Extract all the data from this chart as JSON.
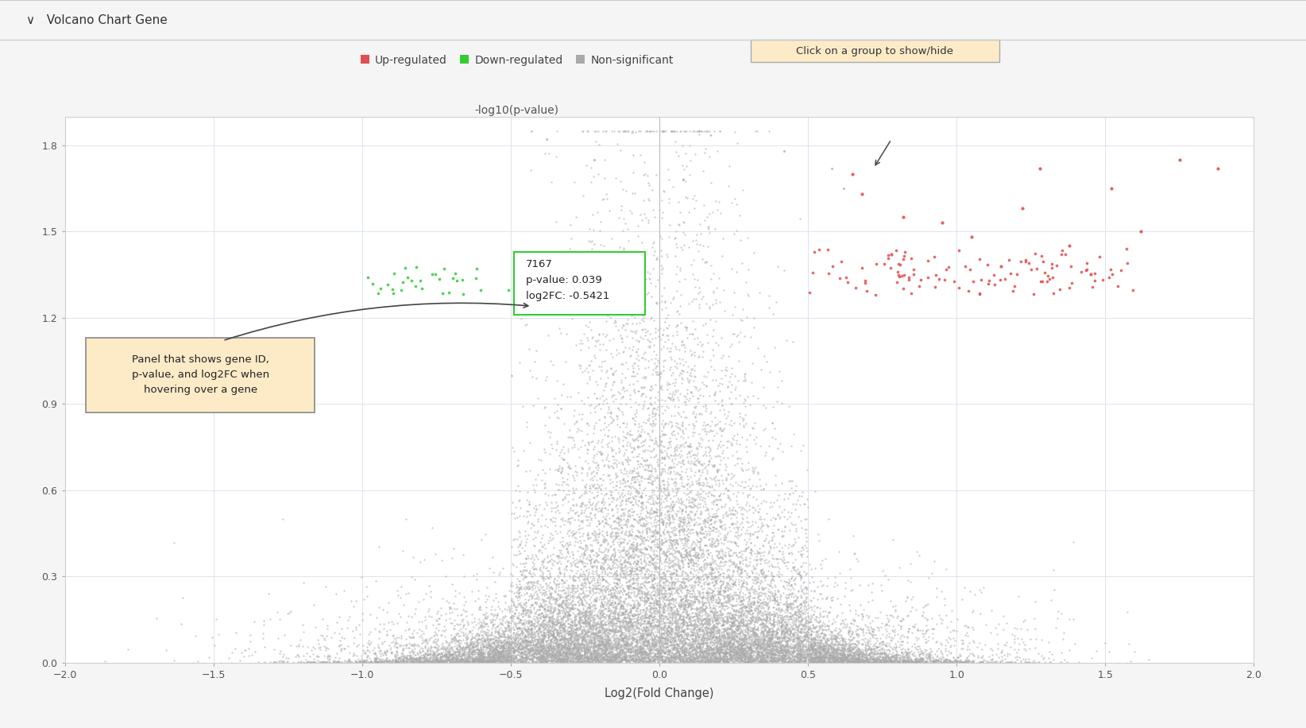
{
  "title": "Volcano Chart Gene",
  "xlabel": "Log2(Fold Change)",
  "ylabel": "-log10(p-value)",
  "xlim": [
    -2,
    2
  ],
  "ylim": [
    0,
    1.9
  ],
  "yticks": [
    0,
    0.3,
    0.6,
    0.9,
    1.2,
    1.5,
    1.8
  ],
  "xticks": [
    -2,
    -1.5,
    -1,
    -0.5,
    0,
    0.5,
    1,
    1.5,
    2
  ],
  "fc_threshold": 0.5,
  "pval_threshold": 0.05,
  "color_up": "#e05050",
  "color_down": "#33cc33",
  "color_ns": "#aaaaaa",
  "bg_color": "#ffffff",
  "fig_bg": "#f5f5f5",
  "grid_color": "#dde3ec",
  "tooltip_text": "7167\np-value: 0.039\nlog2FC: -0.5421",
  "annotation_text": "Panel that shows gene ID,\np-value, and log2FC when\nhovering over a gene",
  "button_text": "Click on a group to show/hide",
  "seed": 42,
  "n_total": 15000,
  "legend_labels": [
    "Up-regulated",
    "Down-regulated",
    "Non-significant"
  ],
  "legend_colors": [
    "#e05050",
    "#33cc33",
    "#aaaaaa"
  ]
}
